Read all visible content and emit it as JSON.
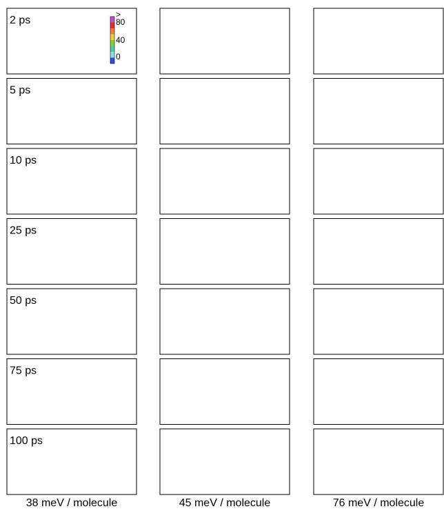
{
  "rows": [
    {
      "label": "2 ps"
    },
    {
      "label": "5 ps"
    },
    {
      "label": "10 ps"
    },
    {
      "label": "25 ps"
    },
    {
      "label": "50 ps"
    },
    {
      "label": "75 ps"
    },
    {
      "label": "100 ps"
    }
  ],
  "columns": [
    "38 meV / molecule",
    "45 meV / molecule",
    "76 meV / molecule"
  ],
  "colorbar": {
    "labels": [
      ">",
      "80",
      "40",
      "0"
    ]
  }
}
